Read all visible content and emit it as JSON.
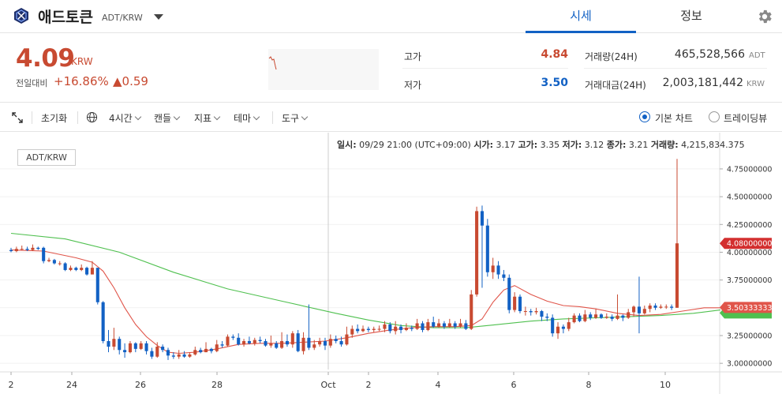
{
  "header": {
    "coin_name": "애드토큰",
    "pair": "ADT/KRW",
    "tabs": [
      {
        "label": "시세"
      },
      {
        "label": "정보"
      }
    ]
  },
  "ticker": {
    "price": "4.09",
    "unit": "KRW",
    "change_label": "전일대비",
    "change_pct": "+16.86%",
    "change_amt": "▲0.59",
    "high_label": "고가",
    "high": "4.84",
    "low_label": "저가",
    "low": "3.50",
    "volume_label": "거래량(24H)",
    "volume": "465,528,566",
    "volume_unit": "ADT",
    "value_label": "거래대금(24H)",
    "value": "2,003,181,442",
    "value_unit": "KRW"
  },
  "toolbar": {
    "reset": "초기화",
    "interval": "4시간",
    "candle": "캔들",
    "indicator": "지표",
    "theme": "테마",
    "tools": "도구",
    "basic_chart": "기본 차트",
    "tradingview": "트레이딩뷰"
  },
  "chart_info": {
    "date_label": "일시:",
    "date": "09/29 21:00 (UTC+09:00)",
    "open_label": "시가:",
    "open": "3.17",
    "high_label": "고가:",
    "high": "3.35",
    "low_label": "저가:",
    "low": "3.12",
    "close_label": "종가:",
    "close": "3.21",
    "vol_label": "거래량:",
    "vol": "4,215,834.375"
  },
  "colors": {
    "up": "#c84a31",
    "down": "#1261c4",
    "ma_short": "#e0554a",
    "ma_long": "#4fc04f"
  },
  "chart_data": {
    "type": "candlestick",
    "pair_label": "ADT/KRW",
    "x_ticks": [
      "2",
      "24",
      "26",
      "28",
      "Oct",
      "2",
      "4",
      "6",
      "8",
      "10"
    ],
    "y_ticks": [
      "4.75000000",
      "4.50000000",
      "4.25000000",
      "4.00000000",
      "3.75000000",
      "3.50000000",
      "3.25000000",
      "3.00000000"
    ],
    "y_values": [
      4.75,
      4.5,
      4.25,
      4.0,
      3.75,
      3.5,
      3.25,
      3.0
    ],
    "ylim": [
      2.93,
      4.92
    ],
    "price_marker": "4.08000000",
    "price_marker_value": 4.08,
    "ma_marker": "3.50333333",
    "ma_marker_value": 3.5033,
    "candles": [
      [
        4.02,
        4.01,
        4.04,
        4.0
      ],
      [
        4.01,
        4.03,
        4.05,
        4.0
      ],
      [
        4.03,
        4.03,
        4.06,
        4.02
      ],
      [
        4.03,
        4.02,
        4.05,
        4.01
      ],
      [
        4.02,
        4.04,
        4.07,
        4.01
      ],
      [
        4.04,
        4.03,
        4.05,
        4.02
      ],
      [
        4.04,
        3.92,
        4.05,
        3.9
      ],
      [
        3.92,
        3.93,
        3.95,
        3.91
      ],
      [
        3.93,
        3.9,
        3.94,
        3.89
      ],
      [
        3.9,
        3.9,
        3.92,
        3.88
      ],
      [
        3.9,
        3.84,
        3.91,
        3.83
      ],
      [
        3.84,
        3.86,
        3.88,
        3.83
      ],
      [
        3.86,
        3.84,
        3.87,
        3.83
      ],
      [
        3.84,
        3.86,
        3.89,
        3.83
      ],
      [
        3.86,
        3.8,
        3.87,
        3.79
      ],
      [
        3.8,
        3.86,
        3.92,
        3.8
      ],
      [
        3.86,
        3.55,
        3.86,
        3.53
      ],
      [
        3.55,
        3.2,
        3.56,
        3.18
      ],
      [
        3.2,
        3.15,
        3.3,
        3.1
      ],
      [
        3.15,
        3.22,
        3.32,
        3.12
      ],
      [
        3.22,
        3.12,
        3.24,
        3.08
      ],
      [
        3.12,
        3.1,
        3.18,
        3.05
      ],
      [
        3.1,
        3.18,
        3.2,
        3.09
      ],
      [
        3.18,
        3.13,
        3.19,
        3.1
      ],
      [
        3.13,
        3.18,
        3.2,
        3.12
      ],
      [
        3.18,
        3.11,
        3.2,
        3.08
      ],
      [
        3.11,
        3.06,
        3.14,
        3.04
      ],
      [
        3.06,
        3.15,
        3.19,
        3.05
      ],
      [
        3.15,
        3.12,
        3.17,
        3.1
      ],
      [
        3.12,
        3.07,
        3.14,
        3.03
      ],
      [
        3.07,
        3.06,
        3.1,
        3.04
      ],
      [
        3.06,
        3.08,
        3.12,
        3.04
      ],
      [
        3.08,
        3.06,
        3.11,
        3.05
      ],
      [
        3.06,
        3.08,
        3.1,
        3.05
      ],
      [
        3.08,
        3.12,
        3.15,
        3.07
      ],
      [
        3.12,
        3.1,
        3.14,
        3.09
      ],
      [
        3.1,
        3.13,
        3.19,
        3.1
      ],
      [
        3.13,
        3.11,
        3.14,
        3.09
      ],
      [
        3.11,
        3.17,
        3.21,
        3.1
      ],
      [
        3.17,
        3.16,
        3.2,
        3.14
      ],
      [
        3.16,
        3.24,
        3.26,
        3.15
      ],
      [
        3.24,
        3.23,
        3.26,
        3.21
      ],
      [
        3.23,
        3.17,
        3.27,
        3.16
      ],
      [
        3.17,
        3.2,
        3.22,
        3.15
      ],
      [
        3.2,
        3.18,
        3.24,
        3.17
      ],
      [
        3.18,
        3.21,
        3.23,
        3.16
      ],
      [
        3.21,
        3.2,
        3.24,
        3.18
      ],
      [
        3.2,
        3.16,
        3.22,
        3.15
      ],
      [
        3.16,
        3.18,
        3.25,
        3.14
      ],
      [
        3.18,
        3.14,
        3.2,
        3.13
      ],
      [
        3.14,
        3.2,
        3.28,
        3.13
      ],
      [
        3.2,
        3.17,
        3.26,
        3.15
      ],
      [
        3.17,
        3.27,
        3.29,
        3.14
      ],
      [
        3.27,
        3.11,
        3.3,
        3.1
      ],
      [
        3.11,
        3.23,
        3.28,
        3.08
      ],
      [
        3.23,
        3.14,
        3.53,
        3.12
      ],
      [
        3.14,
        3.17,
        3.21,
        3.12
      ],
      [
        3.17,
        3.2,
        3.23,
        3.15
      ],
      [
        3.2,
        3.16,
        3.23,
        3.12
      ],
      [
        3.16,
        3.22,
        3.26,
        3.14
      ],
      [
        3.22,
        3.2,
        3.25,
        3.18
      ],
      [
        3.2,
        3.17,
        3.24,
        3.15
      ],
      [
        3.17,
        3.26,
        3.33,
        3.16
      ],
      [
        3.26,
        3.31,
        3.34,
        3.23
      ],
      [
        3.31,
        3.29,
        3.35,
        3.27
      ],
      [
        3.29,
        3.31,
        3.34,
        3.28
      ],
      [
        3.31,
        3.3,
        3.33,
        3.28
      ],
      [
        3.3,
        3.31,
        3.33,
        3.28
      ],
      [
        3.31,
        3.31,
        3.34,
        3.29
      ],
      [
        3.31,
        3.35,
        3.38,
        3.28
      ],
      [
        3.35,
        3.29,
        3.37,
        3.27
      ],
      [
        3.29,
        3.33,
        3.38,
        3.26
      ],
      [
        3.33,
        3.3,
        3.35,
        3.27
      ],
      [
        3.3,
        3.32,
        3.36,
        3.29
      ],
      [
        3.32,
        3.31,
        3.34,
        3.29
      ],
      [
        3.31,
        3.36,
        3.4,
        3.3
      ],
      [
        3.36,
        3.3,
        3.38,
        3.28
      ],
      [
        3.3,
        3.37,
        3.4,
        3.29
      ],
      [
        3.37,
        3.33,
        3.42,
        3.32
      ],
      [
        3.33,
        3.36,
        3.4,
        3.32
      ],
      [
        3.36,
        3.33,
        3.38,
        3.31
      ],
      [
        3.33,
        3.36,
        3.4,
        3.32
      ],
      [
        3.36,
        3.33,
        3.38,
        3.31
      ],
      [
        3.33,
        3.36,
        3.4,
        3.32
      ],
      [
        3.36,
        3.31,
        3.39,
        3.3
      ],
      [
        3.31,
        3.62,
        3.66,
        3.3
      ],
      [
        3.62,
        4.37,
        4.41,
        3.6
      ],
      [
        4.37,
        4.24,
        4.42,
        3.68
      ],
      [
        4.24,
        3.82,
        4.3,
        3.78
      ],
      [
        3.82,
        3.88,
        3.95,
        3.76
      ],
      [
        3.88,
        3.8,
        3.92,
        3.76
      ],
      [
        3.8,
        3.77,
        3.84,
        3.74
      ],
      [
        3.77,
        3.48,
        3.8,
        3.45
      ],
      [
        3.48,
        3.6,
        3.64,
        3.46
      ],
      [
        3.6,
        3.47,
        3.62,
        3.45
      ],
      [
        3.47,
        3.47,
        3.51,
        3.43
      ],
      [
        3.47,
        3.46,
        3.49,
        3.43
      ],
      [
        3.46,
        3.47,
        3.5,
        3.44
      ],
      [
        3.47,
        3.42,
        3.48,
        3.38
      ],
      [
        3.42,
        3.41,
        3.45,
        3.38
      ],
      [
        3.41,
        3.27,
        3.44,
        3.24
      ],
      [
        3.27,
        3.33,
        3.37,
        3.22
      ],
      [
        3.33,
        3.31,
        3.35,
        3.27
      ],
      [
        3.31,
        3.37,
        3.41,
        3.29
      ],
      [
        3.37,
        3.43,
        3.45,
        3.36
      ],
      [
        3.43,
        3.38,
        3.45,
        3.37
      ],
      [
        3.38,
        3.44,
        3.48,
        3.37
      ],
      [
        3.44,
        3.41,
        3.46,
        3.39
      ],
      [
        3.41,
        3.44,
        3.49,
        3.4
      ],
      [
        3.44,
        3.41,
        3.45,
        3.4
      ],
      [
        3.41,
        3.42,
        3.45,
        3.4
      ],
      [
        3.42,
        3.4,
        3.44,
        3.38
      ],
      [
        3.4,
        3.43,
        3.62,
        3.39
      ],
      [
        3.43,
        3.41,
        3.44,
        3.38
      ],
      [
        3.41,
        3.46,
        3.49,
        3.4
      ],
      [
        3.46,
        3.51,
        3.52,
        3.42
      ],
      [
        3.51,
        3.45,
        3.78,
        3.27
      ],
      [
        3.45,
        3.49,
        3.52,
        3.44
      ],
      [
        3.49,
        3.52,
        3.54,
        3.46
      ],
      [
        3.52,
        3.5,
        3.54,
        3.48
      ],
      [
        3.5,
        3.51,
        3.53,
        3.49
      ],
      [
        3.51,
        3.51,
        3.53,
        3.49
      ],
      [
        3.51,
        3.5,
        3.53,
        3.48
      ],
      [
        3.5,
        4.08,
        4.84,
        3.5
      ]
    ],
    "ma_short": [
      [
        0,
        4.02
      ],
      [
        6,
        4.01
      ],
      [
        12,
        3.95
      ],
      [
        15,
        3.91
      ],
      [
        17,
        3.83
      ],
      [
        19,
        3.68
      ],
      [
        21,
        3.5
      ],
      [
        23,
        3.35
      ],
      [
        25,
        3.24
      ],
      [
        27,
        3.16
      ],
      [
        29,
        3.1
      ],
      [
        31,
        3.09
      ],
      [
        34,
        3.1
      ],
      [
        38,
        3.13
      ],
      [
        42,
        3.17
      ],
      [
        46,
        3.18
      ],
      [
        50,
        3.18
      ],
      [
        54,
        3.19
      ],
      [
        58,
        3.2
      ],
      [
        62,
        3.23
      ],
      [
        66,
        3.27
      ],
      [
        70,
        3.3
      ],
      [
        74,
        3.32
      ],
      [
        78,
        3.33
      ],
      [
        82,
        3.33
      ],
      [
        85,
        3.34
      ],
      [
        87,
        3.4
      ],
      [
        89,
        3.55
      ],
      [
        91,
        3.66
      ],
      [
        93,
        3.7
      ],
      [
        96,
        3.62
      ],
      [
        99,
        3.56
      ],
      [
        102,
        3.52
      ],
      [
        105,
        3.51
      ],
      [
        108,
        3.49
      ],
      [
        112,
        3.45
      ],
      [
        116,
        3.43
      ],
      [
        120,
        3.44
      ],
      [
        124,
        3.47
      ],
      [
        128,
        3.5
      ],
      [
        131,
        3.5
      ]
    ],
    "ma_long": [
      [
        0,
        4.17
      ],
      [
        10,
        4.12
      ],
      [
        20,
        4.0
      ],
      [
        30,
        3.82
      ],
      [
        40,
        3.67
      ],
      [
        50,
        3.56
      ],
      [
        60,
        3.45
      ],
      [
        66,
        3.39
      ],
      [
        72,
        3.34
      ],
      [
        78,
        3.32
      ],
      [
        84,
        3.32
      ],
      [
        90,
        3.35
      ],
      [
        96,
        3.38
      ],
      [
        102,
        3.4
      ],
      [
        108,
        3.41
      ],
      [
        114,
        3.42
      ],
      [
        120,
        3.43
      ],
      [
        126,
        3.45
      ],
      [
        131,
        3.48
      ]
    ]
  }
}
